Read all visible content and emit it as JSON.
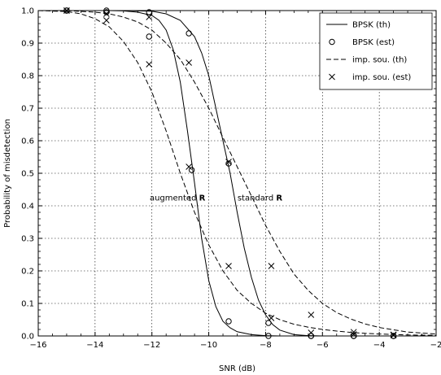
{
  "chart_data": {
    "type": "line",
    "xlabel": "SNR (dB)",
    "ylabel": "Probability of misdetection",
    "xlim": [
      -16,
      -2
    ],
    "ylim": [
      0,
      1
    ],
    "xticks": [
      -16,
      -14,
      -12,
      -10,
      -8,
      -6,
      -4,
      -2
    ],
    "yticks": [
      0,
      0.1,
      0.2,
      0.3,
      0.4,
      0.5,
      0.6,
      0.7,
      0.8,
      0.9,
      1.0
    ],
    "xtick_labels": [
      "−16",
      "−14",
      "−12",
      "−10",
      "−8",
      "−6",
      "−4",
      "−2"
    ],
    "ytick_labels": [
      "0.0",
      "0.1",
      "0.2",
      "0.3",
      "0.4",
      "0.5",
      "0.6",
      "0.7",
      "0.8",
      "0.9",
      "1.0"
    ],
    "grid": true,
    "legend_position": "top-right",
    "series": [
      {
        "name": "BPSK (th)",
        "style": "solid",
        "marker": "none",
        "curves": [
          {
            "x": [
              -15,
              -13.5,
              -13,
              -12.5,
              -12,
              -11.75,
              -11.5,
              -11.25,
              -11,
              -10.75,
              -10.5,
              -10.25,
              -10,
              -9.75,
              -9.5,
              -9.25,
              -9,
              -8.5,
              -8,
              -7.5,
              -7,
              -6,
              -5,
              -4,
              -3,
              -2
            ],
            "y": [
              1.0,
              1.0,
              0.999,
              0.995,
              0.985,
              0.97,
              0.94,
              0.88,
              0.78,
              0.63,
              0.47,
              0.3,
              0.17,
              0.09,
              0.045,
              0.025,
              0.013,
              0.004,
              0.001,
              0.0,
              0.0,
              0.0,
              0.0,
              0.0,
              0.0,
              0.0
            ]
          },
          {
            "x": [
              -15,
              -14,
              -13,
              -12,
              -11.5,
              -11,
              -10.5,
              -10.25,
              -10,
              -9.75,
              -9.5,
              -9.25,
              -9,
              -8.75,
              -8.5,
              -8.25,
              -8,
              -7.75,
              -7.5,
              -7,
              -6.5,
              -6,
              -5,
              -4,
              -3,
              -2
            ],
            "y": [
              1.0,
              1.0,
              1.0,
              0.998,
              0.99,
              0.97,
              0.92,
              0.87,
              0.8,
              0.7,
              0.6,
              0.5,
              0.38,
              0.27,
              0.18,
              0.11,
              0.065,
              0.035,
              0.018,
              0.004,
              0.001,
              0.0,
              0.0,
              0.0,
              0.0,
              0.0
            ]
          }
        ]
      },
      {
        "name": "BPSK (est)",
        "style": "none",
        "marker": "circle",
        "points": [
          {
            "x": [
              -15,
              -13.6,
              -12.1,
              -10.6,
              -9.3,
              -7.9,
              -6.4,
              -4.9,
              -3.5
            ],
            "y": [
              1.0,
              0.995,
              0.92,
              0.51,
              0.045,
              0.0,
              0.0,
              0.0,
              0.0
            ]
          },
          {
            "x": [
              -15,
              -13.6,
              -12.1,
              -10.7,
              -9.3,
              -7.9,
              -6.4,
              -4.9,
              -3.5
            ],
            "y": [
              1.0,
              1.0,
              0.995,
              0.93,
              0.53,
              0.04,
              0.0,
              0.0,
              0.0
            ]
          }
        ]
      },
      {
        "name": "imp. sou. (th)",
        "style": "dashed",
        "marker": "none",
        "curves": [
          {
            "x": [
              -16,
              -15,
              -14.5,
              -14,
              -13.5,
              -13,
              -12.5,
              -12,
              -11.5,
              -11,
              -10.5,
              -10,
              -9.5,
              -9,
              -8.5,
              -8,
              -7.5,
              -7,
              -6.5,
              -6,
              -5.5,
              -5,
              -4.5,
              -4,
              -3,
              -2
            ],
            "y": [
              1.0,
              0.997,
              0.99,
              0.975,
              0.95,
              0.905,
              0.84,
              0.75,
              0.63,
              0.5,
              0.38,
              0.28,
              0.2,
              0.14,
              0.1,
              0.07,
              0.05,
              0.036,
              0.027,
              0.02,
              0.015,
              0.011,
              0.008,
              0.006,
              0.003,
              0.002
            ]
          },
          {
            "x": [
              -15,
              -14,
              -13.5,
              -13,
              -12.5,
              -12,
              -11.5,
              -11,
              -10.5,
              -10,
              -9.5,
              -9,
              -8.5,
              -8,
              -7.5,
              -7,
              -6.5,
              -6,
              -5.5,
              -5,
              -4.5,
              -4,
              -3,
              -2
            ],
            "y": [
              1.0,
              0.995,
              0.99,
              0.98,
              0.965,
              0.94,
              0.9,
              0.85,
              0.78,
              0.7,
              0.61,
              0.52,
              0.43,
              0.34,
              0.26,
              0.19,
              0.14,
              0.1,
              0.072,
              0.052,
              0.037,
              0.026,
              0.012,
              0.006
            ]
          }
        ]
      },
      {
        "name": "imp. sou. (est)",
        "style": "none",
        "marker": "x",
        "points": [
          {
            "x": [
              -15,
              -13.6,
              -12.1,
              -10.7,
              -9.3,
              -7.8,
              -6.4,
              -4.9,
              -3.5
            ],
            "y": [
              1.0,
              0.97,
              0.835,
              0.52,
              0.215,
              0.055,
              0.01,
              0.005,
              0.002
            ]
          },
          {
            "x": [
              -15,
              -13.6,
              -12.1,
              -10.7,
              -9.3,
              -7.8,
              -6.4,
              -4.9,
              -3.5
            ],
            "y": [
              1.0,
              0.99,
              0.98,
              0.84,
              0.535,
              0.215,
              0.065,
              0.012,
              0.004
            ]
          }
        ]
      }
    ],
    "annotations": [
      {
        "prefix": "augmented ",
        "bold": "R",
        "x": -11.1,
        "y": 0.425
      },
      {
        "prefix": "standard ",
        "bold": "R",
        "x": -8.2,
        "y": 0.425
      }
    ]
  }
}
